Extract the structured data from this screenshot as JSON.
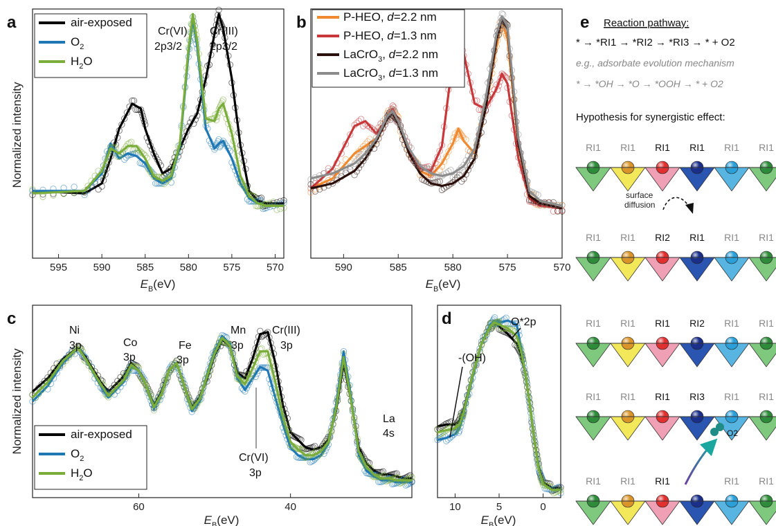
{
  "panels": {
    "a": {
      "letter": "a",
      "xlabel_main": "E",
      "xlabel_sub": "B",
      "xlabel_unit": "(eV)",
      "ylabel": "Normalized intensity"
    },
    "b": {
      "letter": "b",
      "xlabel_main": "E",
      "xlabel_sub": "B",
      "xlabel_unit": "(eV)"
    },
    "c": {
      "letter": "c",
      "xlabel_main": "E",
      "xlabel_sub": "B",
      "xlabel_unit": "(eV)",
      "ylabel": "Normalized intensity"
    },
    "d": {
      "letter": "d",
      "xlabel_main": "E",
      "xlabel_sub": "B",
      "xlabel_unit": "(eV)"
    },
    "e": {
      "letter": "e"
    }
  },
  "annotations": {
    "a_crvi_l1": "Cr(VI)",
    "a_crvi_l2": "2p3/2",
    "a_criii_l1": "Cr(III)",
    "a_criii_l2": "2p3/2",
    "c_ni_l1": "Ni",
    "c_ni_l2": "3p",
    "c_co_l1": "Co",
    "c_co_l2": "3p",
    "c_fe_l1": "Fe",
    "c_fe_l2": "3p",
    "c_mn_l1": "Mn",
    "c_mn_l2": "3p",
    "c_criii_l1": "Cr(III)",
    "c_criii_l2": "3p",
    "c_la_l1": "La",
    "c_la_l2": "4s",
    "c_crvi_l1": "Cr(VI)",
    "c_crvi_l2": "3p",
    "d_oh": "-(OH)",
    "d_o2p": "O*2p"
  },
  "legends": {
    "a": [
      "air-exposed",
      "O2",
      "H2O"
    ],
    "b": [
      "P-HEO, d=2.2 nm",
      "P-HEO, d=1.3 nm",
      "LaCrO3, d=2.2 nm",
      "LaCrO3, d=1.3 nm"
    ],
    "c": [
      "air-exposed",
      "O2",
      "H2O"
    ]
  },
  "panel_e": {
    "title": "Reaction pathway:",
    "pathway": "* → *RI1 → *RI2 → *RI3 → * + O2",
    "example_label": "e.g., adsorbate evolution mechanism",
    "example": "* → *OH → *O → *OOH → * + O2",
    "hypothesis": "Hypothesis for synergistic effect:",
    "surface_diffusion_l1": "surface",
    "surface_diffusion_l2": "diffusion",
    "o2_label": "O2",
    "rows": [
      [
        "RI1",
        "RI1",
        "RI1",
        "RI1",
        "RI1",
        "RI1"
      ],
      [
        "RI1",
        "RI1",
        "RI2",
        "RI1",
        "RI1",
        "RI1"
      ],
      [
        "RI1",
        "RI1",
        "RI1",
        "RI2",
        "RI1",
        "RI1"
      ],
      [
        "RI1",
        "RI1",
        "RI1",
        "RI3",
        "RI1",
        "RI1"
      ],
      [
        "RI1",
        "RI1",
        "RI1",
        "",
        "RI1",
        "RI1"
      ]
    ],
    "site_colors": [
      "#2e8b3a",
      "#d9952a",
      "#e03030",
      "#1a2f8a",
      "#2a9fd8",
      "#2e8b3a"
    ],
    "tri_colors": [
      "#7fc97f",
      "#f3e85a",
      "#f0a0b4",
      "#2a55b0",
      "#58b4e0",
      "#7fc97f"
    ]
  },
  "colors": {
    "air": "#000000",
    "o2": "#1f78b4",
    "h2o": "#7aad3a",
    "pheo22": "#f08a30",
    "pheo13": "#c8383a",
    "lac22": "#2a0f0a",
    "lac13": "#8c8c8c"
  },
  "chart_data": [
    {
      "type": "line",
      "panel": "a",
      "xlabel": "EB(eV)",
      "ylabel": "Normalized intensity",
      "xlim": [
        598,
        569
      ],
      "x_ticks": [
        595,
        590,
        585,
        580,
        575,
        570
      ],
      "series": [
        {
          "name": "air-exposed",
          "x": [
            598,
            592,
            590,
            589,
            588,
            586.5,
            585.5,
            585,
            584,
            583,
            582,
            581,
            580,
            579,
            578,
            577,
            576.5,
            576,
            575,
            574,
            573,
            572,
            571,
            569
          ],
          "y": [
            0.27,
            0.26,
            0.3,
            0.4,
            0.52,
            0.62,
            0.6,
            0.52,
            0.42,
            0.34,
            0.36,
            0.44,
            0.52,
            0.58,
            0.72,
            0.9,
            0.98,
            0.92,
            0.72,
            0.45,
            0.27,
            0.23,
            0.22,
            0.22
          ]
        },
        {
          "name": "O2",
          "x": [
            598,
            592,
            590,
            589,
            588,
            587,
            586,
            585,
            584,
            583,
            582,
            581,
            580,
            579.5,
            579,
            578,
            577,
            576.5,
            576,
            575,
            574,
            573,
            572,
            571,
            569
          ],
          "y": [
            0.27,
            0.27,
            0.34,
            0.46,
            0.4,
            0.42,
            0.41,
            0.38,
            0.32,
            0.3,
            0.32,
            0.45,
            0.82,
            0.96,
            0.85,
            0.52,
            0.44,
            0.46,
            0.47,
            0.4,
            0.3,
            0.24,
            0.22,
            0.21,
            0.21
          ]
        },
        {
          "name": "H2O",
          "x": [
            598,
            592,
            590,
            589,
            588,
            587,
            586,
            585,
            584,
            583,
            582,
            581,
            580,
            579.5,
            579,
            578,
            577,
            576.5,
            576,
            575,
            574,
            573,
            572,
            571,
            569
          ],
          "y": [
            0.26,
            0.27,
            0.35,
            0.44,
            0.42,
            0.45,
            0.45,
            0.4,
            0.33,
            0.31,
            0.33,
            0.46,
            0.84,
            0.98,
            0.87,
            0.56,
            0.55,
            0.6,
            0.62,
            0.5,
            0.33,
            0.25,
            0.22,
            0.21,
            0.21
          ]
        }
      ]
    },
    {
      "type": "line",
      "panel": "b",
      "xlabel": "EB(eV)",
      "xlim": [
        593,
        570
      ],
      "x_ticks": [
        590,
        585,
        580,
        575,
        570
      ],
      "series": [
        {
          "name": "P-HEO, d=2.2 nm",
          "x": [
            593,
            591,
            589,
            588,
            587,
            586,
            585.5,
            585,
            584,
            583,
            582,
            581,
            580,
            579.5,
            579,
            578,
            577,
            576,
            575.5,
            575,
            574,
            573,
            572,
            570
          ],
          "y": [
            0.28,
            0.32,
            0.42,
            0.45,
            0.48,
            0.57,
            0.6,
            0.55,
            0.42,
            0.35,
            0.33,
            0.38,
            0.46,
            0.52,
            0.47,
            0.42,
            0.6,
            0.85,
            0.95,
            0.88,
            0.45,
            0.25,
            0.22,
            0.2
          ]
        },
        {
          "name": "P-HEO, d=1.3 nm",
          "x": [
            593,
            591,
            589,
            588,
            587,
            586,
            585.5,
            585,
            584,
            583,
            582,
            581,
            580,
            579.5,
            579,
            578,
            577,
            576,
            575.5,
            575,
            574,
            573,
            572,
            570
          ],
          "y": [
            0.28,
            0.36,
            0.53,
            0.55,
            0.5,
            0.56,
            0.6,
            0.55,
            0.43,
            0.36,
            0.35,
            0.45,
            0.8,
            0.95,
            0.82,
            0.62,
            0.6,
            0.68,
            0.74,
            0.7,
            0.4,
            0.24,
            0.21,
            0.2
          ]
        },
        {
          "name": "LaCrO3, d=2.2 nm",
          "x": [
            593,
            591,
            589,
            588,
            587,
            586,
            585.5,
            585,
            584,
            583,
            582,
            581,
            580,
            579,
            578,
            577,
            576,
            575.5,
            575,
            574,
            573,
            572,
            570
          ],
          "y": [
            0.28,
            0.3,
            0.35,
            0.4,
            0.47,
            0.56,
            0.58,
            0.54,
            0.42,
            0.34,
            0.3,
            0.29,
            0.3,
            0.33,
            0.4,
            0.6,
            0.88,
            0.96,
            0.92,
            0.46,
            0.25,
            0.22,
            0.2
          ]
        },
        {
          "name": "LaCrO3, d=1.3 nm",
          "x": [
            593,
            591,
            589,
            588,
            587,
            586,
            585.5,
            585,
            584,
            583,
            582,
            581,
            580,
            579,
            578,
            577,
            576,
            575.5,
            575,
            574,
            573,
            572,
            570
          ],
          "y": [
            0.32,
            0.34,
            0.38,
            0.42,
            0.48,
            0.57,
            0.59,
            0.55,
            0.44,
            0.37,
            0.34,
            0.33,
            0.34,
            0.37,
            0.44,
            0.64,
            0.9,
            0.97,
            0.93,
            0.48,
            0.27,
            0.23,
            0.21
          ]
        }
      ]
    },
    {
      "type": "line",
      "panel": "c",
      "xlabel": "EB(eV)",
      "ylabel": "Normalized intensity",
      "xlim": [
        74,
        24
      ],
      "x_ticks": [
        60,
        40
      ],
      "series": [
        {
          "name": "air-exposed",
          "x": [
            74,
            72,
            70,
            68,
            67,
            65,
            64,
            62,
            61,
            60,
            59,
            58,
            57,
            56,
            55,
            54,
            53,
            52,
            51,
            50,
            49,
            48,
            47,
            46,
            45,
            44,
            43,
            42,
            41,
            40,
            39,
            38,
            37,
            36,
            35,
            34,
            33,
            32,
            31,
            30,
            29,
            28,
            27,
            26,
            25,
            24
          ],
          "y": [
            0.55,
            0.62,
            0.72,
            0.78,
            0.73,
            0.6,
            0.55,
            0.63,
            0.7,
            0.66,
            0.58,
            0.48,
            0.55,
            0.66,
            0.7,
            0.58,
            0.47,
            0.52,
            0.62,
            0.74,
            0.82,
            0.79,
            0.65,
            0.62,
            0.72,
            0.85,
            0.86,
            0.7,
            0.48,
            0.34,
            0.3,
            0.26,
            0.25,
            0.26,
            0.3,
            0.45,
            0.7,
            0.5,
            0.26,
            0.18,
            0.14,
            0.12,
            0.12,
            0.11,
            0.1,
            0.1
          ]
        },
        {
          "name": "O2",
          "x": [
            74,
            72,
            70,
            68,
            67,
            65,
            64,
            62,
            61,
            60,
            59,
            58,
            57,
            56,
            55,
            54,
            53,
            52,
            51,
            50,
            49,
            48,
            47,
            46,
            45,
            44,
            43,
            42,
            41,
            40,
            39,
            38,
            37,
            36,
            35,
            34,
            33,
            32,
            31,
            30,
            29,
            28,
            27,
            26,
            25,
            24
          ],
          "y": [
            0.5,
            0.58,
            0.7,
            0.78,
            0.72,
            0.58,
            0.52,
            0.6,
            0.68,
            0.66,
            0.58,
            0.46,
            0.54,
            0.66,
            0.7,
            0.58,
            0.45,
            0.5,
            0.64,
            0.76,
            0.84,
            0.8,
            0.62,
            0.56,
            0.62,
            0.68,
            0.66,
            0.52,
            0.38,
            0.26,
            0.22,
            0.2,
            0.2,
            0.22,
            0.28,
            0.48,
            0.76,
            0.52,
            0.22,
            0.14,
            0.11,
            0.09,
            0.09,
            0.08,
            0.08,
            0.08
          ]
        },
        {
          "name": "H2O",
          "x": [
            74,
            72,
            70,
            68,
            67,
            65,
            64,
            62,
            61,
            60,
            59,
            58,
            57,
            56,
            55,
            54,
            53,
            52,
            51,
            50,
            49,
            48,
            47,
            46,
            45,
            44,
            43,
            42,
            41,
            40,
            39,
            38,
            37,
            36,
            35,
            34,
            33,
            32,
            31,
            30,
            29,
            28,
            27,
            26,
            25,
            24
          ],
          "y": [
            0.52,
            0.6,
            0.71,
            0.78,
            0.72,
            0.59,
            0.53,
            0.61,
            0.69,
            0.66,
            0.58,
            0.47,
            0.54,
            0.66,
            0.7,
            0.58,
            0.46,
            0.51,
            0.63,
            0.75,
            0.83,
            0.79,
            0.63,
            0.59,
            0.67,
            0.76,
            0.76,
            0.6,
            0.42,
            0.29,
            0.25,
            0.22,
            0.22,
            0.24,
            0.29,
            0.46,
            0.73,
            0.5,
            0.24,
            0.16,
            0.12,
            0.1,
            0.1,
            0.09,
            0.09,
            0.09
          ]
        }
      ]
    },
    {
      "type": "line",
      "panel": "d",
      "xlabel": "EB(eV)",
      "xlim": [
        12,
        -2
      ],
      "x_ticks": [
        10,
        5,
        0
      ],
      "series": [
        {
          "name": "air-exposed",
          "x": [
            12,
            11,
            10,
            9.5,
            9,
            8,
            7,
            6,
            5.5,
            5,
            4,
            3,
            2.5,
            2,
            1.5,
            1,
            0.5,
            0,
            -1,
            -2
          ],
          "y": [
            0.37,
            0.38,
            0.38,
            0.4,
            0.46,
            0.64,
            0.8,
            0.89,
            0.91,
            0.89,
            0.85,
            0.8,
            0.74,
            0.64,
            0.48,
            0.3,
            0.16,
            0.08,
            0.05,
            0.05
          ]
        },
        {
          "name": "O2",
          "x": [
            12,
            11,
            10,
            9.5,
            9,
            8,
            7,
            6,
            5.5,
            5,
            4,
            3,
            2.5,
            2,
            1.5,
            1,
            0.5,
            0,
            -1,
            -2
          ],
          "y": [
            0.3,
            0.31,
            0.33,
            0.36,
            0.44,
            0.63,
            0.8,
            0.9,
            0.92,
            0.91,
            0.92,
            0.9,
            0.78,
            0.64,
            0.48,
            0.3,
            0.15,
            0.07,
            0.04,
            0.04
          ]
        },
        {
          "name": "H2O",
          "x": [
            12,
            11,
            10,
            9.5,
            9,
            8,
            7,
            6,
            5.5,
            5,
            4,
            3,
            2.5,
            2,
            1.5,
            1,
            0.5,
            0,
            -1,
            -2
          ],
          "y": [
            0.34,
            0.35,
            0.36,
            0.38,
            0.45,
            0.64,
            0.8,
            0.89,
            0.91,
            0.9,
            0.88,
            0.84,
            0.76,
            0.64,
            0.48,
            0.3,
            0.15,
            0.07,
            0.04,
            0.04
          ]
        }
      ]
    }
  ]
}
